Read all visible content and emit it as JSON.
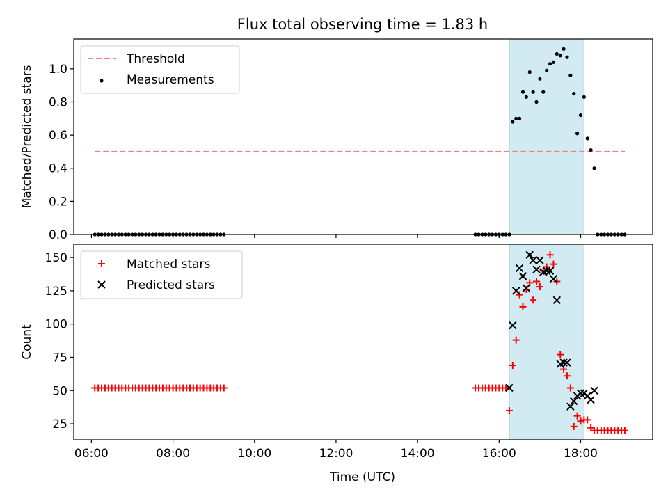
{
  "figure": {
    "title": "Flux total observing time = 1.83 h",
    "xlabel": "Time (UTC)",
    "observing_window": {
      "start": "16:15",
      "end": "18:05",
      "color": "#add8e6"
    }
  },
  "chart_data": [
    {
      "type": "scatter",
      "ylabel": "Matched/Predicted stars",
      "xlim": [
        "05:34",
        "19:46"
      ],
      "ylim": [
        0,
        1.18
      ],
      "yticks": [
        0.0,
        0.2,
        0.4,
        0.6,
        0.8,
        1.0
      ],
      "threshold": {
        "name": "Threshold",
        "value": 0.5,
        "x_range": [
          "06:05",
          "19:05"
        ],
        "color": "#f08080"
      },
      "series": [
        {
          "name": "Measurements",
          "color": "#000000",
          "marker": "dot",
          "x": [
            "06:05",
            "06:10",
            "06:15",
            "06:20",
            "06:25",
            "06:30",
            "06:35",
            "06:40",
            "06:45",
            "06:50",
            "06:55",
            "07:00",
            "07:05",
            "07:10",
            "07:15",
            "07:20",
            "07:25",
            "07:30",
            "07:35",
            "07:40",
            "07:45",
            "07:50",
            "07:55",
            "08:00",
            "08:05",
            "08:10",
            "08:15",
            "08:20",
            "08:25",
            "08:30",
            "08:35",
            "08:40",
            "08:45",
            "08:50",
            "08:55",
            "09:00",
            "09:05",
            "09:10",
            "09:15",
            "15:25",
            "15:30",
            "15:35",
            "15:40",
            "15:45",
            "15:50",
            "15:55",
            "16:00",
            "16:05",
            "16:10",
            "16:15",
            "16:20",
            "16:25",
            "16:30",
            "16:35",
            "16:40",
            "16:45",
            "16:50",
            "16:55",
            "17:00",
            "17:05",
            "17:10",
            "17:15",
            "17:20",
            "17:25",
            "17:30",
            "17:35",
            "17:40",
            "17:45",
            "17:50",
            "17:55",
            "18:00",
            "18:05",
            "18:10",
            "18:15",
            "18:20",
            "18:25",
            "18:30",
            "18:35",
            "18:40",
            "18:45",
            "18:50",
            "18:55",
            "19:00",
            "19:05"
          ],
          "y": [
            0,
            0,
            0,
            0,
            0,
            0,
            0,
            0,
            0,
            0,
            0,
            0,
            0,
            0,
            0,
            0,
            0,
            0,
            0,
            0,
            0,
            0,
            0,
            0,
            0,
            0,
            0,
            0,
            0,
            0,
            0,
            0,
            0,
            0,
            0,
            0,
            0,
            0,
            0,
            0,
            0,
            0,
            0,
            0,
            0,
            0,
            0,
            0,
            0,
            0,
            0.68,
            0.7,
            0.7,
            0.86,
            0.83,
            0.98,
            0.86,
            0.8,
            0.94,
            0.86,
            0.99,
            1.03,
            1.04,
            1.09,
            1.08,
            1.12,
            1.07,
            0.96,
            0.85,
            0.61,
            0.72,
            0.83,
            0.58,
            0.51,
            0.4,
            0,
            0,
            0,
            0,
            0,
            0,
            0,
            0,
            0
          ]
        }
      ],
      "legend": {
        "position": "top-left",
        "entries": [
          "Threshold",
          "Measurements"
        ]
      }
    },
    {
      "type": "scatter",
      "ylabel": "Count",
      "xlim": [
        "05:34",
        "19:46"
      ],
      "ylim": [
        13,
        160
      ],
      "yticks": [
        25,
        50,
        75,
        100,
        125,
        150
      ],
      "xticks": [
        "06:00",
        "08:00",
        "10:00",
        "12:00",
        "14:00",
        "16:00",
        "18:00"
      ],
      "series": [
        {
          "name": "Matched stars",
          "color": "#ff0000",
          "marker": "plus",
          "x": [
            "06:05",
            "06:10",
            "06:15",
            "06:20",
            "06:25",
            "06:30",
            "06:35",
            "06:40",
            "06:45",
            "06:50",
            "06:55",
            "07:00",
            "07:05",
            "07:10",
            "07:15",
            "07:20",
            "07:25",
            "07:30",
            "07:35",
            "07:40",
            "07:45",
            "07:50",
            "07:55",
            "08:00",
            "08:05",
            "08:10",
            "08:15",
            "08:20",
            "08:25",
            "08:30",
            "08:35",
            "08:40",
            "08:45",
            "08:50",
            "08:55",
            "09:00",
            "09:05",
            "09:10",
            "09:15",
            "15:25",
            "15:30",
            "15:35",
            "15:40",
            "15:45",
            "15:50",
            "15:55",
            "16:00",
            "16:05",
            "16:10",
            "16:15",
            "16:20",
            "16:25",
            "16:30",
            "16:35",
            "16:40",
            "16:45",
            "16:50",
            "16:55",
            "17:00",
            "17:05",
            "17:10",
            "17:15",
            "17:20",
            "17:25",
            "17:30",
            "17:35",
            "17:40",
            "17:45",
            "17:50",
            "17:55",
            "18:00",
            "18:05",
            "18:10",
            "18:15",
            "18:20",
            "18:25",
            "18:30",
            "18:35",
            "18:40",
            "18:45",
            "18:50",
            "18:55",
            "19:00",
            "19:05"
          ],
          "y": [
            52,
            52,
            52,
            52,
            52,
            52,
            52,
            52,
            52,
            52,
            52,
            52,
            52,
            52,
            52,
            52,
            52,
            52,
            52,
            52,
            52,
            52,
            52,
            52,
            52,
            52,
            52,
            52,
            52,
            52,
            52,
            52,
            52,
            52,
            52,
            52,
            52,
            52,
            52,
            52,
            52,
            52,
            52,
            52,
            52,
            52,
            52,
            52,
            52,
            35,
            69,
            88,
            122,
            113,
            126,
            131,
            118,
            132,
            128,
            140,
            143,
            152,
            145,
            132,
            77,
            66,
            61,
            52,
            23,
            31,
            27,
            28,
            28,
            22,
            20,
            20,
            20,
            20,
            20,
            20,
            20,
            20,
            20,
            20
          ]
        },
        {
          "name": "Predicted stars",
          "color": "#000000",
          "marker": "x",
          "x": [
            "16:15",
            "16:20",
            "16:25",
            "16:30",
            "16:35",
            "16:40",
            "16:45",
            "16:50",
            "16:55",
            "17:00",
            "17:05",
            "17:10",
            "17:15",
            "17:20",
            "17:25",
            "17:30",
            "17:35",
            "17:40",
            "17:45",
            "17:50",
            "17:55",
            "18:00",
            "18:05",
            "18:10",
            "18:15",
            "18:20"
          ],
          "y": [
            52,
            99,
            125,
            142,
            136,
            127,
            152,
            148,
            141,
            148,
            139,
            140,
            140,
            134,
            118,
            70,
            71,
            71,
            38,
            42,
            46,
            48,
            48,
            46,
            43,
            50
          ]
        }
      ],
      "legend": {
        "position": "top-left",
        "entries": [
          "Matched stars",
          "Predicted stars"
        ]
      }
    }
  ]
}
